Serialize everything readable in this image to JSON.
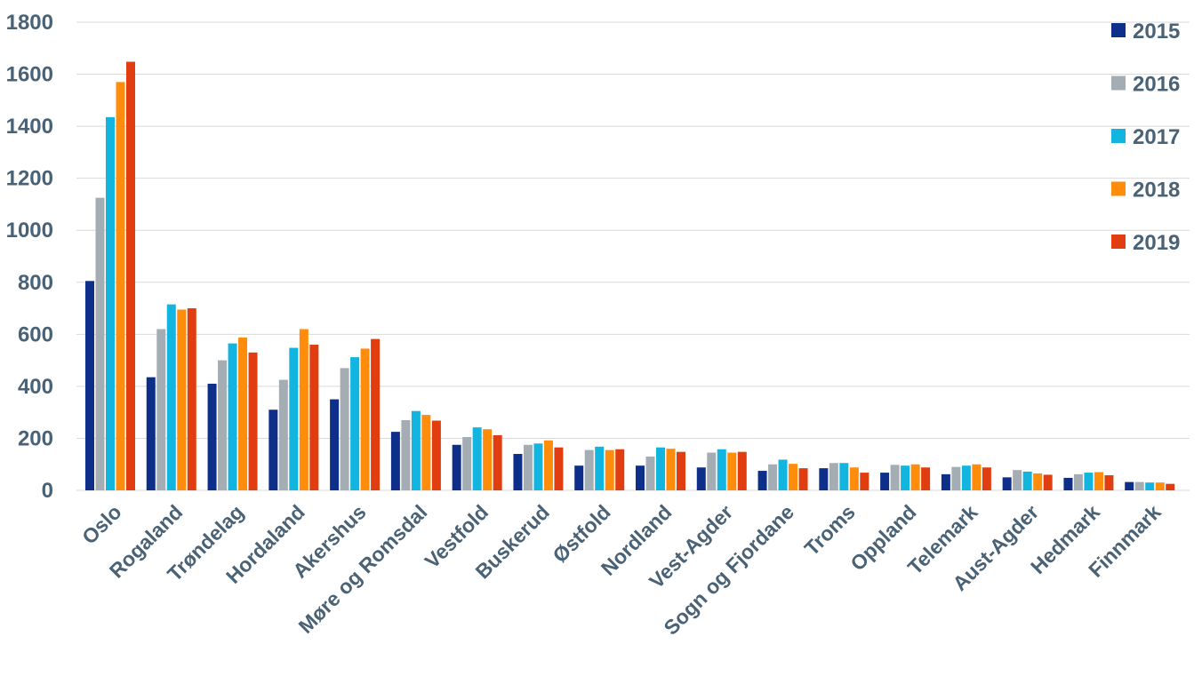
{
  "chart_data": {
    "type": "bar",
    "title": "",
    "xlabel": "",
    "ylabel": "",
    "ylim": [
      0,
      1800
    ],
    "yticks": [
      0,
      200,
      400,
      600,
      800,
      1000,
      1200,
      1400,
      1600,
      1800
    ],
    "ytick_labels": [
      "0",
      "200",
      "400",
      "600",
      "800",
      "1000",
      "1200",
      "1400",
      "1600",
      "1800"
    ],
    "grid": true,
    "legend_position": "right",
    "categories": [
      "Oslo",
      "Rogaland",
      "Trøndelag",
      "Hordaland",
      "Akershus",
      "Møre og Romsdal",
      "Vestfold",
      "Buskerud",
      "Østfold",
      "Nordland",
      "Vest-Agder",
      "Sogn og Fjordane",
      "Troms",
      "Oppland",
      "Telemark",
      "Aust-Agder",
      "Hedmark",
      "Finnmark"
    ],
    "series": [
      {
        "name": "2015",
        "color": "#0d2f8a",
        "values": [
          805,
          435,
          410,
          310,
          350,
          225,
          175,
          140,
          95,
          95,
          88,
          75,
          85,
          68,
          62,
          50,
          48,
          32
        ]
      },
      {
        "name": "2016",
        "color": "#a5adb4",
        "values": [
          1125,
          620,
          500,
          425,
          470,
          270,
          205,
          175,
          155,
          130,
          145,
          100,
          105,
          98,
          90,
          78,
          62,
          32
        ]
      },
      {
        "name": "2017",
        "color": "#12b5e0",
        "values": [
          1435,
          715,
          565,
          548,
          512,
          305,
          242,
          180,
          168,
          165,
          158,
          118,
          105,
          95,
          95,
          72,
          68,
          30
        ]
      },
      {
        "name": "2018",
        "color": "#ff8c0a",
        "values": [
          1570,
          695,
          588,
          620,
          545,
          290,
          235,
          192,
          155,
          160,
          145,
          102,
          88,
          100,
          100,
          65,
          70,
          30
        ]
      },
      {
        "name": "2019",
        "color": "#e03d10",
        "values": [
          1648,
          700,
          530,
          560,
          582,
          268,
          212,
          165,
          158,
          148,
          148,
          85,
          68,
          88,
          88,
          60,
          58,
          25
        ]
      }
    ]
  }
}
